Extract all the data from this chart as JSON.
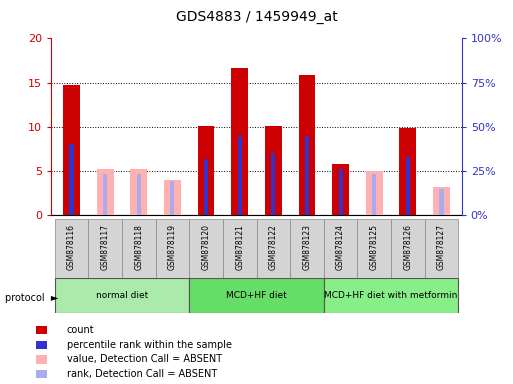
{
  "title": "GDS4883 / 1459949_at",
  "samples": [
    "GSM878116",
    "GSM878117",
    "GSM878118",
    "GSM878119",
    "GSM878120",
    "GSM878121",
    "GSM878122",
    "GSM878123",
    "GSM878124",
    "GSM878125",
    "GSM878126",
    "GSM878127"
  ],
  "count_values": [
    14.7,
    0,
    0,
    0,
    10.1,
    16.6,
    10.1,
    15.8,
    5.8,
    0,
    9.9,
    0
  ],
  "absent_value_values": [
    0,
    5.2,
    5.2,
    4.0,
    0,
    0,
    0,
    0,
    0,
    5.0,
    0,
    3.2
  ],
  "percentile_present": [
    40,
    0,
    0,
    0,
    32,
    45,
    35,
    45,
    26,
    0,
    33,
    0
  ],
  "percentile_absent": [
    0,
    23,
    23,
    19,
    0,
    0,
    0,
    0,
    0,
    23,
    0,
    15
  ],
  "ylim_left": [
    0,
    20
  ],
  "ylim_right": [
    0,
    100
  ],
  "yticks_left": [
    0,
    5,
    10,
    15,
    20
  ],
  "yticks_right": [
    0,
    25,
    50,
    75,
    100
  ],
  "ytick_labels_left": [
    "0",
    "5",
    "10",
    "15",
    "20"
  ],
  "ytick_labels_right": [
    "0%",
    "25%",
    "50%",
    "75%",
    "100%"
  ],
  "count_color": "#cc0000",
  "absent_value_color": "#ffb0b0",
  "percentile_present_color": "#3333cc",
  "percentile_absent_color": "#aaaaee",
  "axis_color_left": "#cc0000",
  "axis_color_right": "#3333cc",
  "groups_info": [
    {
      "label": "normal diet",
      "start": 0,
      "end": 3,
      "color": "#aaeaaa"
    },
    {
      "label": "MCD+HF diet",
      "start": 4,
      "end": 7,
      "color": "#66dd66"
    },
    {
      "label": "MCD+HF diet with metformin",
      "start": 8,
      "end": 11,
      "color": "#88ee88"
    }
  ],
  "legend_items": [
    {
      "color": "#cc0000",
      "label": "count"
    },
    {
      "color": "#3333cc",
      "label": "percentile rank within the sample"
    },
    {
      "color": "#ffb0b0",
      "label": "value, Detection Call = ABSENT"
    },
    {
      "color": "#aaaaee",
      "label": "rank, Detection Call = ABSENT"
    }
  ]
}
